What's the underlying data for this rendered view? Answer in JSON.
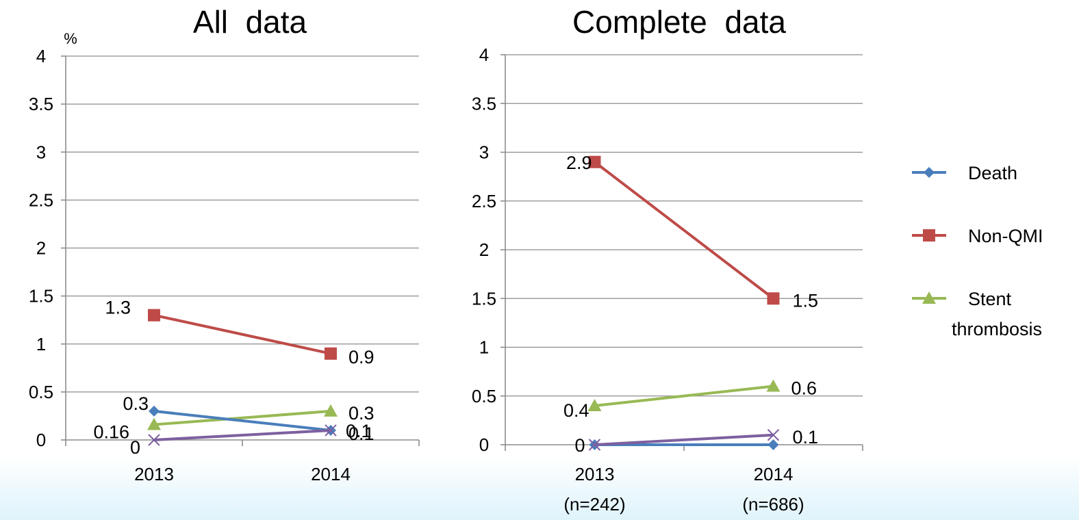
{
  "colors": {
    "death": "#4a7ebb",
    "non_qmi": "#be4b48",
    "stent": "#98b954",
    "fourth": "#7d60a0",
    "grid": "#8c8c8c"
  },
  "legend": {
    "items": [
      {
        "label": "Death",
        "color": "#4a7ebb",
        "marker": "diamond"
      },
      {
        "label": "Non-QMI",
        "color": "#be4b48",
        "marker": "square"
      },
      {
        "label": "Stent thrombosis",
        "label_lines": [
          "Stent",
          "thrombosis"
        ],
        "color": "#98b954",
        "marker": "triangle"
      }
    ]
  },
  "chart_data": [
    {
      "type": "line",
      "title": "All  data",
      "unit_label": "%",
      "categories": [
        "2013",
        "2014"
      ],
      "ylim": [
        0,
        4
      ],
      "yticks": [
        "0",
        "0.5",
        "1",
        "1.5",
        "2",
        "2.5",
        "3",
        "3.5",
        "4"
      ],
      "grid": true,
      "series": [
        {
          "name": "Death",
          "marker": "diamond",
          "color": "#4a7ebb",
          "values": [
            0.3,
            0.1
          ],
          "labels": [
            "0.3",
            "0.1"
          ]
        },
        {
          "name": "Non-QMI",
          "marker": "square",
          "color": "#be4b48",
          "values": [
            1.3,
            0.9
          ],
          "labels": [
            "1.3",
            "0.9"
          ]
        },
        {
          "name": "Stent thrombosis",
          "marker": "triangle",
          "color": "#98b954",
          "values": [
            0.16,
            0.3
          ],
          "labels": [
            "0.16",
            "0.3"
          ]
        },
        {
          "marker": "x",
          "color": "#7d60a0",
          "values": [
            0,
            0.1
          ],
          "labels": [
            "0",
            "0.1"
          ]
        }
      ]
    },
    {
      "type": "line",
      "title": "Complete  data",
      "categories": [
        "2013",
        "2014"
      ],
      "category_notes": [
        "(n=242)",
        "(n=686)"
      ],
      "ylim": [
        0,
        4
      ],
      "yticks": [
        "0",
        "0.5",
        "1",
        "1.5",
        "2",
        "2.5",
        "3",
        "3.5",
        "4"
      ],
      "grid": true,
      "series": [
        {
          "name": "Death",
          "marker": "diamond",
          "color": "#4a7ebb",
          "values": [
            0,
            0
          ],
          "labels": [
            "0",
            ""
          ]
        },
        {
          "name": "Non-QMI",
          "marker": "square",
          "color": "#be4b48",
          "values": [
            2.9,
            1.5
          ],
          "labels": [
            "2.9",
            "1.5"
          ]
        },
        {
          "name": "Stent thrombosis",
          "marker": "triangle",
          "color": "#98b954",
          "values": [
            0.4,
            0.6
          ],
          "labels": [
            "0.4",
            "0.6"
          ]
        },
        {
          "marker": "x",
          "color": "#7d60a0",
          "values": [
            0,
            0.1
          ],
          "labels": [
            "",
            "0.1"
          ]
        }
      ]
    }
  ]
}
